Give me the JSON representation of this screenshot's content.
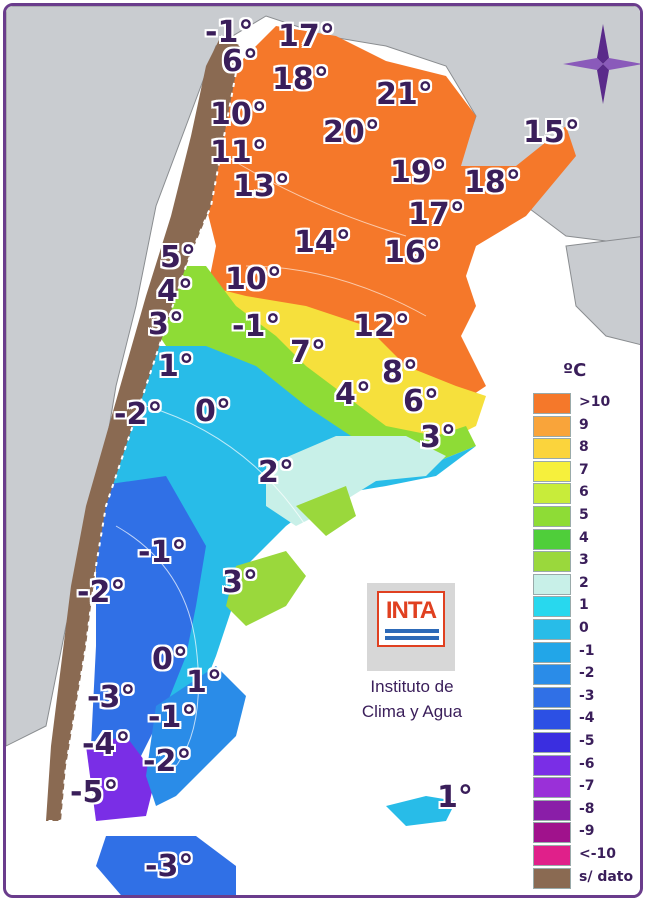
{
  "labels": [
    {
      "text": "-1°"
    },
    {
      "text": "17°"
    },
    {
      "text": "6°"
    },
    {
      "text": "18°"
    },
    {
      "text": "21°"
    },
    {
      "text": "10°"
    },
    {
      "text": "20°"
    },
    {
      "text": "15°"
    },
    {
      "text": "11°"
    },
    {
      "text": "19°"
    },
    {
      "text": "18°"
    },
    {
      "text": "13°"
    },
    {
      "text": "17°"
    },
    {
      "text": "14°"
    },
    {
      "text": "16°"
    },
    {
      "text": "5°"
    },
    {
      "text": "10°"
    },
    {
      "text": "4°"
    },
    {
      "text": "3°"
    },
    {
      "text": "-1°"
    },
    {
      "text": "12°"
    },
    {
      "text": "7°"
    },
    {
      "text": "1°"
    },
    {
      "text": "8°"
    },
    {
      "text": "4°"
    },
    {
      "text": "6°"
    },
    {
      "text": "-2°"
    },
    {
      "text": "0°"
    },
    {
      "text": "3°"
    },
    {
      "text": "2°"
    },
    {
      "text": "-1°"
    },
    {
      "text": "3°"
    },
    {
      "text": "-2°"
    },
    {
      "text": "0°"
    },
    {
      "text": "1°"
    },
    {
      "text": "-3°"
    },
    {
      "text": "-1°"
    },
    {
      "text": "-4°"
    },
    {
      "text": "-2°"
    },
    {
      "text": "-5°"
    },
    {
      "text": "1°"
    },
    {
      "text": "-3°"
    }
  ],
  "legend": {
    "title": "ºC",
    "items": [
      {
        "label": ">10",
        "color": "#f5782a"
      },
      {
        "label": "9",
        "color": "#f9a43a"
      },
      {
        "label": "8",
        "color": "#fbd43c"
      },
      {
        "label": "7",
        "color": "#f6f03c"
      },
      {
        "label": "6",
        "color": "#c8ec3a"
      },
      {
        "label": "5",
        "color": "#8edc36"
      },
      {
        "label": "4",
        "color": "#4fce3a"
      },
      {
        "label": "3",
        "color": "#9ad83c"
      },
      {
        "label": "2",
        "color": "#c8f0e8"
      },
      {
        "label": "1",
        "color": "#28d8ee"
      },
      {
        "label": "0",
        "color": "#28bce8"
      },
      {
        "label": "-1",
        "color": "#22a6e8"
      },
      {
        "label": "-2",
        "color": "#2a8ce8"
      },
      {
        "label": "-3",
        "color": "#3070e6"
      },
      {
        "label": "-4",
        "color": "#2c50e4"
      },
      {
        "label": "-5",
        "color": "#3a2ee0"
      },
      {
        "label": "-6",
        "color": "#7a2ee6"
      },
      {
        "label": "-7",
        "color": "#9a30d8"
      },
      {
        "label": "-8",
        "color": "#8a1ea8"
      },
      {
        "label": "-9",
        "color": "#a0128c"
      },
      {
        "label": "<-10",
        "color": "#e0208a"
      },
      {
        "label": "s/ dato",
        "color": "#8a6a52"
      }
    ]
  },
  "logo": {
    "text": "INTA"
  },
  "institute": {
    "line1": "Instituto de",
    "line2": "Clima y Agua"
  },
  "icons": {
    "compass": "compass-rose-icon"
  }
}
